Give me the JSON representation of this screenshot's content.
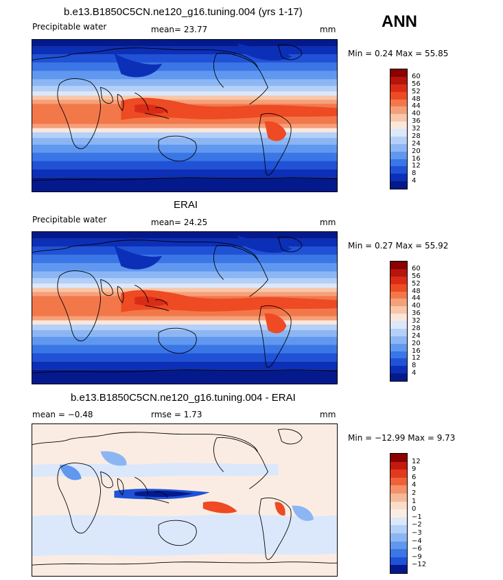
{
  "season": "ANN",
  "panels": [
    {
      "title": "b.e13.B1850C5CN.ne120_g16.tuning.004 (yrs 1-17)",
      "left_label": "Precipitable water",
      "center_label": "mean=  23.77",
      "units": "mm",
      "minmax": "Min =   0.24  Max =  55.85",
      "kind": "field"
    },
    {
      "title": "ERAI",
      "left_label": "Precipitable water",
      "center_label": "mean=  24.25",
      "units": "mm",
      "minmax": "Min =   0.27  Max =  55.92",
      "kind": "field"
    },
    {
      "title": "b.e13.B1850C5CN.ne120_g16.tuning.004 - ERAI",
      "left_label": "mean =  −0.48",
      "center_label": "rmse =    1.73",
      "units": "mm",
      "minmax": "Min = −12.99  Max =    9.73",
      "kind": "diff"
    }
  ],
  "colorbars": {
    "field": {
      "labels": [
        "60",
        "56",
        "52",
        "48",
        "44",
        "40",
        "36",
        "32",
        "28",
        "24",
        "20",
        "16",
        "12",
        "8",
        "4"
      ],
      "colors": [
        "#8b0000",
        "#b5150b",
        "#d92c16",
        "#ee4a24",
        "#f2784a",
        "#f5a07a",
        "#f8c6a8",
        "#fbe6da",
        "#dbe8fb",
        "#b4d0f8",
        "#8cb6f3",
        "#6098ef",
        "#3a76e6",
        "#1f52d6",
        "#0c2fb8",
        "#041a8c"
      ]
    },
    "diff": {
      "labels": [
        "12",
        "9",
        "6",
        "4",
        "2",
        "1",
        "0",
        "−1",
        "−2",
        "−3",
        "−4",
        "−6",
        "−9",
        "−12"
      ],
      "colors": [
        "#8b0000",
        "#c01b0e",
        "#e2391c",
        "#ef6238",
        "#f49169",
        "#f7b89a",
        "#fbdcc9",
        "#fbece3",
        "#dbe8fb",
        "#b4d0f8",
        "#8cb6f3",
        "#6098ef",
        "#3a76e6",
        "#1f52d6",
        "#041a8c"
      ]
    }
  }
}
